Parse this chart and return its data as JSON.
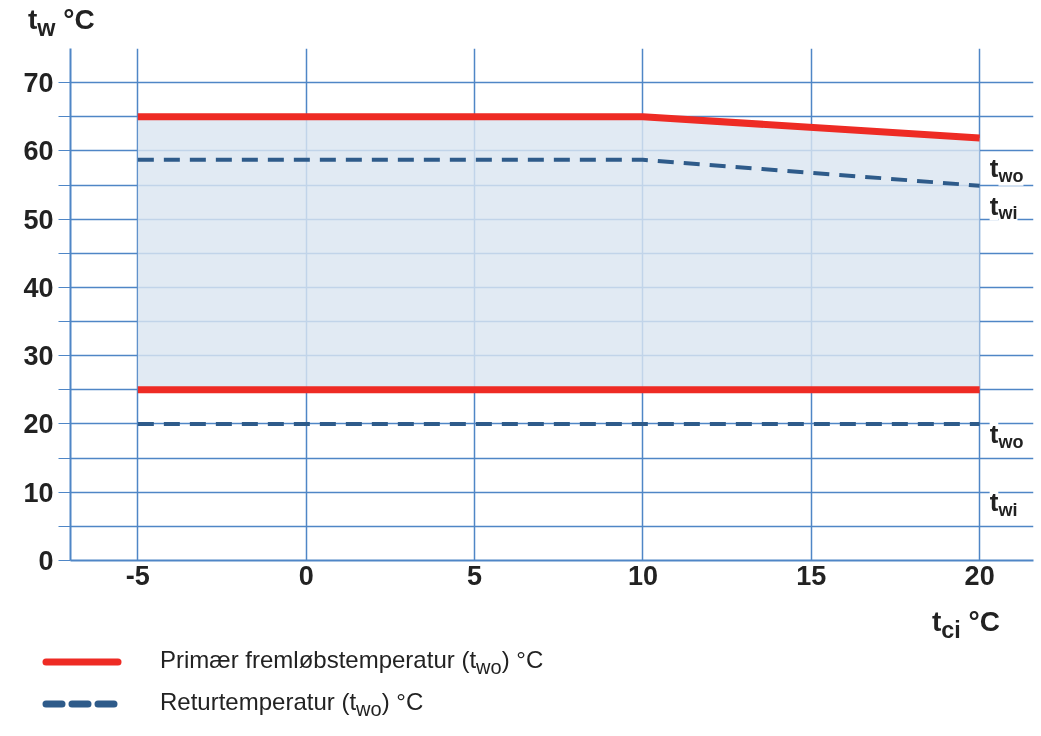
{
  "chart_data": {
    "type": "line",
    "xlabel": "t$_{ci}$ °C",
    "ylabel": "t$_{w}$ °C",
    "xlim": [
      -7,
      21.6
    ],
    "ylim": [
      0,
      75
    ],
    "xticks": [
      -5,
      0,
      5,
      10,
      15,
      20
    ],
    "yticks": [
      0,
      {
        "value": 5,
        "label": null
      },
      10,
      {
        "value": 15,
        "label": null
      },
      20,
      {
        "value": 25,
        "label": null
      },
      30,
      {
        "value": 35,
        "label": null
      },
      40,
      {
        "value": 45,
        "label": null
      },
      50,
      {
        "value": 55,
        "label": null
      },
      60,
      {
        "value": 65,
        "label": null
      },
      70
    ],
    "grid": true,
    "legend": "bottom",
    "marker": "none",
    "series": [
      {
        "name": "Primær fremløbstemperatur (t$_{wo}$) °C",
        "color": "#ee2b24",
        "line_style": "solid",
        "x": [
          -5,
          10,
          20
        ],
        "values": [
          65,
          65,
          61.9
        ],
        "lower": [
          25,
          25,
          25
        ],
        "upper": [
          65,
          65,
          61.9
        ]
      },
      {
        "color": "#ee2b24",
        "line_style": "solid",
        "x": [
          -5,
          20
        ],
        "values": [
          25,
          25
        ]
      },
      {
        "name": "Returtemperatur (t$_{wo}$) °C",
        "color": "#2e5b8a",
        "line_style": "dashed",
        "x": [
          -5,
          10,
          20
        ],
        "values": [
          58.7,
          58.7,
          54.9
        ]
      },
      {
        "color": "#2e5b8a",
        "line_style": "dashed",
        "x": [
          -5,
          20
        ],
        "values": [
          20,
          20
        ]
      }
    ],
    "annotations": [
      "t$_{wo}$",
      "t$_{wi}$",
      "t$_{wo}$",
      "t$_{wi}$"
    ]
  }
}
